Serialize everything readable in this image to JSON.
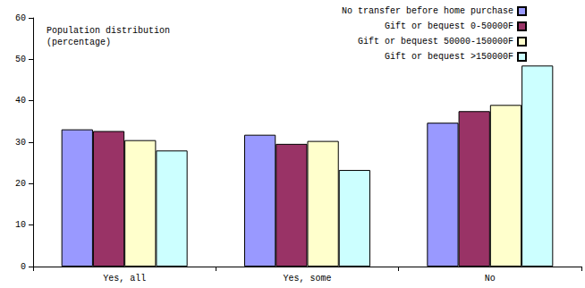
{
  "chart_data": {
    "type": "bar",
    "annotation": "Population distribution\n(percentage)",
    "categories": [
      "Yes, all",
      "Yes, some",
      "No"
    ],
    "series": [
      {
        "name": "No transfer before home purchase",
        "color": "#9999ff",
        "values": [
          33.1,
          31.8,
          34.7
        ]
      },
      {
        "name": "Gift or bequest 0-50000F",
        "color": "#993366",
        "values": [
          32.7,
          29.6,
          37.5
        ]
      },
      {
        "name": "Gift or bequest 50000-150000F",
        "color": "#ffffcc",
        "values": [
          30.5,
          30.3,
          39.0
        ]
      },
      {
        "name": "Gift or bequest >150000F",
        "color": "#ccffff",
        "values": [
          28.0,
          23.3,
          48.5
        ]
      }
    ],
    "ylim": [
      0,
      60
    ],
    "yticks": [
      0,
      10,
      20,
      30,
      40,
      50,
      60
    ],
    "grid": false,
    "legend": "top-right"
  }
}
